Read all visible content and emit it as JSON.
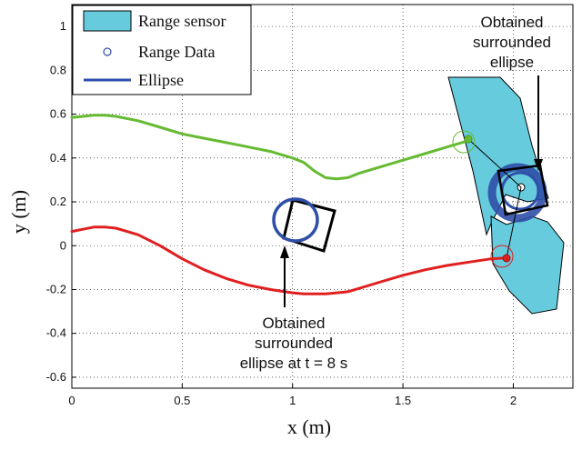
{
  "chart_data": {
    "type": "line",
    "xlabel": "x (m)",
    "ylabel": "y (m)",
    "xlim": [
      0,
      2.27
    ],
    "ylim": [
      -0.65,
      1.1
    ],
    "xticks": [
      "0",
      "0.5",
      "1",
      "1.5",
      "2"
    ],
    "xtick_values": [
      0,
      0.5,
      1,
      1.5,
      2
    ],
    "yticks": [
      "-0.6",
      "-0.4",
      "-0.2",
      "0",
      "0.2",
      "0.4",
      "0.6",
      "0.8",
      "1"
    ],
    "ytick_values": [
      -0.6,
      -0.4,
      -0.2,
      0,
      0.2,
      0.4,
      0.6,
      0.8,
      1
    ],
    "grid": true,
    "legend_position": "top-left",
    "legend": [
      {
        "label": "Range sensor",
        "kind": "patch",
        "color": "#66ccdd"
      },
      {
        "label": "Range Data",
        "kind": "marker",
        "color": "#2f4fa8"
      },
      {
        "label": "Ellipse",
        "kind": "line",
        "color": "#2f4fa8"
      }
    ],
    "series": [
      {
        "color": "#66bb33",
        "x": [
          0,
          0.05,
          0.1,
          0.15,
          0.2,
          0.3,
          0.4,
          0.5,
          0.6,
          0.7,
          0.8,
          0.9,
          1.0,
          1.05,
          1.1,
          1.15,
          1.2,
          1.25,
          1.3,
          1.4,
          1.5,
          1.6,
          1.7,
          1.8
        ],
        "y": [
          0.585,
          0.59,
          0.595,
          0.595,
          0.59,
          0.57,
          0.54,
          0.51,
          0.49,
          0.47,
          0.45,
          0.43,
          0.4,
          0.38,
          0.34,
          0.31,
          0.305,
          0.31,
          0.33,
          0.36,
          0.39,
          0.42,
          0.45,
          0.48
        ]
      },
      {
        "color": "#e02020",
        "x": [
          0,
          0.05,
          0.1,
          0.15,
          0.2,
          0.3,
          0.4,
          0.5,
          0.6,
          0.7,
          0.8,
          0.9,
          1.0,
          1.05,
          1.1,
          1.15,
          1.2,
          1.25,
          1.3,
          1.4,
          1.5,
          1.6,
          1.7,
          1.8,
          1.9,
          1.98
        ],
        "y": [
          0.065,
          0.075,
          0.085,
          0.085,
          0.08,
          0.05,
          0.0,
          -0.06,
          -0.11,
          -0.15,
          -0.18,
          -0.2,
          -0.215,
          -0.22,
          -0.22,
          -0.22,
          -0.215,
          -0.21,
          -0.195,
          -0.165,
          -0.135,
          -0.11,
          -0.09,
          -0.075,
          -0.06,
          -0.055
        ]
      }
    ],
    "annotations": [
      {
        "lines": [
          "Obtained",
          "surrounded",
          "ellipse at t = 8 s"
        ]
      },
      {
        "lines": [
          "Obtained",
          "surrounded",
          "ellipse"
        ]
      }
    ]
  }
}
